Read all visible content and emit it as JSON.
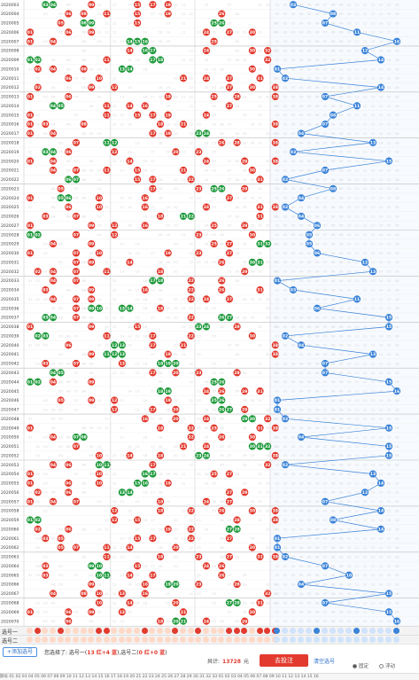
{
  "issues": [
    "2020003",
    "2020004",
    "2020005",
    "2020006",
    "2020007",
    "2020008",
    "2020009",
    "2020010",
    "2020011",
    "2020012",
    "2020013",
    "2020014",
    "2020015",
    "2020016",
    "2020017",
    "2020018",
    "2020019",
    "2020020",
    "2020021",
    "2020022",
    "2020023",
    "2020024",
    "2020025",
    "2020026",
    "2020027",
    "2020028",
    "2020029",
    "2020030",
    "2020031",
    "2020032",
    "2020033",
    "2020034",
    "2020035",
    "2020036",
    "2020037",
    "2020038",
    "2020039",
    "2020040",
    "2020041",
    "2020042",
    "2020043",
    "2020044",
    "2020045",
    "2020046",
    "2020047",
    "2020048",
    "2020049",
    "2020050",
    "2020051",
    "2020052",
    "2020053",
    "2020054",
    "2020055",
    "2020056",
    "2020057",
    "2020058",
    "2020059",
    "2020060",
    "2020061",
    "2020062",
    "2020063",
    "2020064",
    "2020065",
    "2020066",
    "2020067",
    "2020068",
    "2020069",
    "2020070"
  ],
  "blue_numbers": [
    3,
    8,
    7,
    11,
    16,
    12,
    14,
    1,
    2,
    14,
    7,
    11,
    8,
    7,
    4,
    13,
    3,
    15,
    7,
    2,
    8,
    4,
    2,
    4,
    6,
    5,
    5,
    6,
    12,
    13,
    1,
    3,
    11,
    6,
    15,
    15,
    2,
    4,
    13,
    7,
    7,
    15,
    16,
    1,
    1,
    2,
    15,
    4,
    15,
    15,
    2,
    13,
    14,
    12,
    7,
    14,
    8,
    14,
    1,
    1,
    2,
    7,
    10,
    4,
    15,
    7,
    15,
    16
  ],
  "colors": {
    "red": "#e23a2e",
    "green": "#1e9a3c",
    "blue": "#3a83d8",
    "ghost": "#d6d6d6"
  },
  "pick_rows": {
    "row1_label": "选号一",
    "row2_label": "选号二"
  },
  "toolbar": {
    "add_label": "+添加选号",
    "summary_prefix": "您选择了: 选号一(",
    "summary_red1": "13 红+4 蓝",
    "summary_mid": "),选号二(",
    "summary_red2": "0 红+0 蓝",
    "summary_suffix": ")",
    "total_label": "共计:",
    "total_amount": "13728",
    "total_unit": "元",
    "bet_label": "去投注",
    "clear_label": "清空选号",
    "opt_fixed": "固定",
    "opt_float": "浮动"
  },
  "footer_text": "期号 01 02 03 04 05 06 07 08 09 10 11 12 13 14 15 16 17 18 19 20 21 22 23 24 25 26 27 28 29 30 31 32 33 01 02 03 04 05 06 07 08 09 10 11 12 13 14 15 16"
}
